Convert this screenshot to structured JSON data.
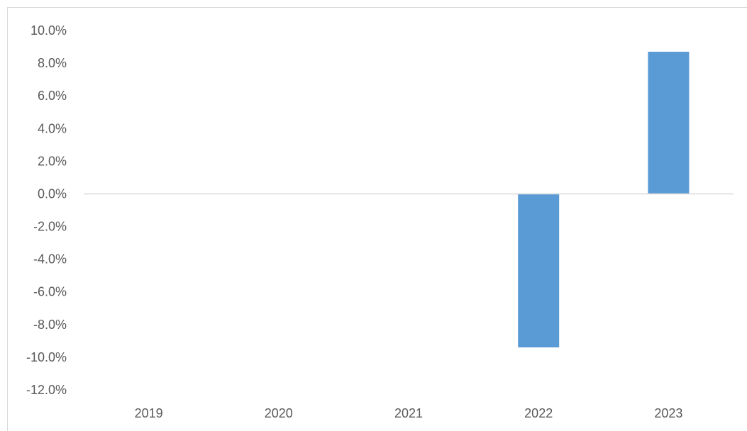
{
  "chart_data": {
    "type": "bar",
    "categories": [
      "2019",
      "2020",
      "2021",
      "2022",
      "2023"
    ],
    "values": [
      0.0,
      0.0,
      0.0,
      -9.4,
      8.7
    ],
    "y_ticks": [
      "10.0%",
      "8.0%",
      "6.0%",
      "4.0%",
      "2.0%",
      "0.0%",
      "-2.0%",
      "-4.0%",
      "-6.0%",
      "-8.0%",
      "-10.0%",
      "-12.0%"
    ],
    "ylim": [
      -12,
      10
    ],
    "unit": "%",
    "grid": false,
    "colors": {
      "bar": "#5b9bd5",
      "axis": "#d9d9d9",
      "text": "#595959"
    }
  }
}
